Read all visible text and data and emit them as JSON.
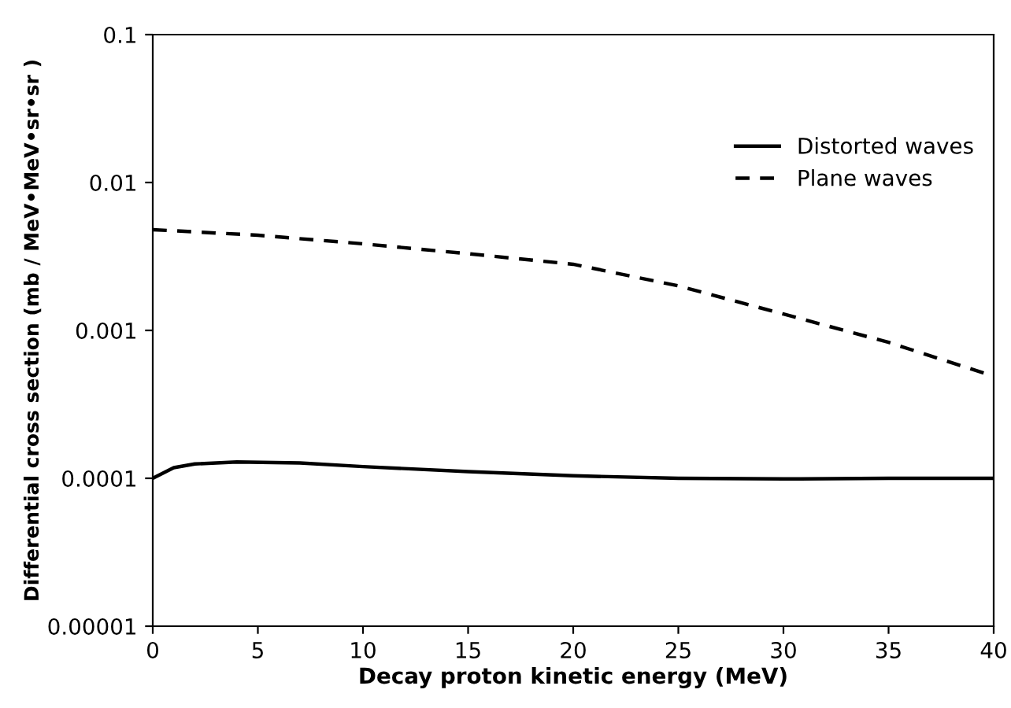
{
  "chart_data": {
    "type": "line",
    "xlabel": "Decay proton kinetic energy (MeV)",
    "ylabel": "Differential cross section (mb / MeV•MeV•sr•sr )",
    "xlim": [
      0,
      40
    ],
    "xticks": [
      0,
      5,
      10,
      15,
      20,
      25,
      30,
      35,
      40
    ],
    "ylim": [
      1e-05,
      0.1
    ],
    "yticks": [
      {
        "value": 1e-05,
        "label": "0.00001"
      },
      {
        "value": 0.0001,
        "label": "0.0001"
      },
      {
        "value": 0.001,
        "label": "0.001"
      },
      {
        "value": 0.01,
        "label": "0.01"
      },
      {
        "value": 0.1,
        "label": "0.1"
      }
    ],
    "log": "y",
    "grid": false,
    "legend": "top right",
    "series": [
      {
        "name": "Distorted waves",
        "color": "#000000",
        "line_style": "solid",
        "x": [
          0,
          1,
          2,
          4,
          7,
          10,
          15,
          20,
          25,
          30,
          35,
          40
        ],
        "values": [
          0.0001,
          0.000118,
          0.000125,
          0.000129,
          0.000127,
          0.00012,
          0.000111,
          0.000104,
          0.0001,
          9.9e-05,
          0.0001,
          0.0001
        ]
      },
      {
        "name": "Plane waves",
        "color": "#000000",
        "line_style": "dashed",
        "x": [
          0,
          5,
          10,
          15,
          20,
          25,
          30,
          35,
          40
        ],
        "values": [
          0.0048,
          0.0044,
          0.00385,
          0.0033,
          0.0028,
          0.002,
          0.00129,
          0.00083,
          0.00049
        ]
      }
    ]
  }
}
